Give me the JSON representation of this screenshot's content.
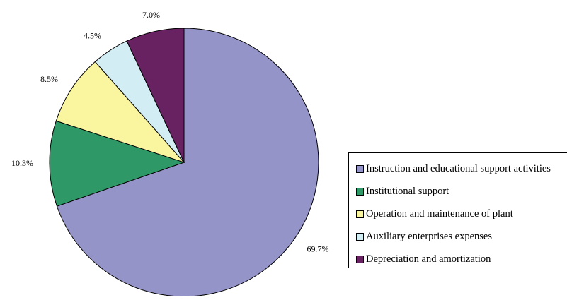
{
  "chart_data": {
    "type": "pie",
    "title": "",
    "start_angle_deg": 0,
    "direction": "clockwise",
    "legend_position": "right",
    "slices": [
      {
        "label": "Instruction and educational support activities",
        "value": 69.7,
        "value_label": "69.7%",
        "color": "#9594C8"
      },
      {
        "label": "Institutional support",
        "value": 10.3,
        "value_label": "10.3%",
        "color": "#2E9966"
      },
      {
        "label": "Operation and maintenance of plant",
        "value": 8.5,
        "value_label": "8.5%",
        "color": "#FAF6A0"
      },
      {
        "label": "Auxiliary enterprises expenses",
        "value": 4.5,
        "value_label": "4.5%",
        "color": "#D3EDF4"
      },
      {
        "label": "Depreciation and amortization",
        "value": 7.0,
        "value_label": "7.0%",
        "color": "#682262"
      }
    ]
  }
}
